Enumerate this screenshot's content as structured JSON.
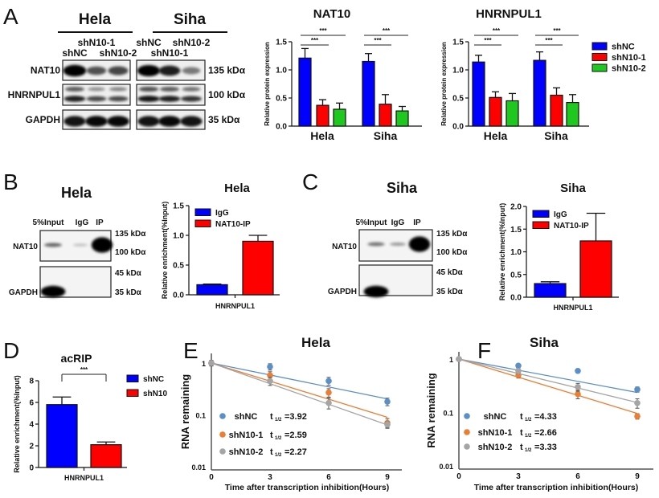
{
  "panel_letters": [
    "A",
    "B",
    "C",
    "D",
    "E",
    "F"
  ],
  "panel_a_blot": {
    "groups": [
      "Hela",
      "Siha"
    ],
    "lanes": [
      "shNC",
      "shN10-1",
      "shN10-2"
    ],
    "rows": [
      {
        "label": "NAT10",
        "marker": "135 kDα",
        "bands": {
          "Hela": [
            [
              1.0,
              0.55,
              0.6
            ]
          ],
          "Siha": [
            [
              0.95,
              0.8,
              0.35
            ]
          ]
        }
      },
      {
        "label": "HNRNPUL1",
        "marker": "100 kDα",
        "bands": {
          "Hela": [
            [
              0.5,
              0.25,
              0.3
            ],
            [
              0.8,
              0.6,
              0.6
            ]
          ],
          "Siha": [
            [
              0.55,
              0.5,
              0.4
            ],
            [
              0.85,
              0.8,
              0.7
            ]
          ]
        }
      },
      {
        "label": "GAPDH",
        "marker": "35 kDα",
        "bands": {
          "Hela": [
            [
              0.85,
              0.9,
              0.9
            ]
          ],
          "Siha": [
            [
              0.85,
              0.9,
              0.85
            ]
          ]
        }
      }
    ]
  },
  "panel_b_blot": {
    "title": "Hela",
    "lanes": [
      "5%Input",
      "IgG",
      "IP"
    ],
    "rows": [
      {
        "label": "NAT10",
        "markers": [
          "135 kDα",
          "100 kDα"
        ],
        "bands": [
          0.45,
          0.03,
          1.0
        ]
      },
      {
        "label": "GAPDH",
        "markers": [
          "45 kDα",
          "35 kDα"
        ],
        "bands": [
          1.0,
          0,
          0
        ]
      }
    ]
  },
  "panel_c_blot": {
    "title": "Siha",
    "lanes": [
      "5%Input",
      "IgG",
      "IP"
    ],
    "rows": [
      {
        "label": "NAT10",
        "markers": [
          "135 kDα",
          "100 kDα"
        ],
        "bands": [
          0.4,
          0.22,
          1.0
        ]
      },
      {
        "label": "GAPDH",
        "markers": [
          "45 kDα",
          "35 kDα"
        ],
        "bands": [
          1.0,
          0,
          0
        ]
      }
    ]
  },
  "chart_data": [
    {
      "type": "bar",
      "title": "NAT10",
      "ylabel": "Relative protein expression",
      "xlabel": "",
      "ylim": [
        0,
        1.5
      ],
      "yticks": [
        0,
        0.5,
        1.0,
        1.5
      ],
      "ytick_labels": [
        "0.0",
        "0.5",
        "1.0",
        "1.5"
      ],
      "categories": [
        "Hela",
        "Siha"
      ],
      "series": [
        {
          "name": "shNC",
          "color": "#0000ff",
          "values": [
            1.21,
            1.15
          ],
          "errors": [
            0.17,
            0.14
          ]
        },
        {
          "name": "shN10-1",
          "color": "#ff0000",
          "values": [
            0.37,
            0.39
          ],
          "errors": [
            0.1,
            0.17
          ]
        },
        {
          "name": "shN10-2",
          "color": "#1ec81e",
          "values": [
            0.3,
            0.27
          ],
          "errors": [
            0.11,
            0.08
          ]
        }
      ],
      "significance": [
        {
          "category": 0,
          "pair": [
            0,
            1
          ],
          "label": "***"
        },
        {
          "category": 0,
          "pair": [
            0,
            2
          ],
          "label": "***"
        },
        {
          "category": 1,
          "pair": [
            0,
            1
          ],
          "label": "***"
        },
        {
          "category": 1,
          "pair": [
            0,
            2
          ],
          "label": "***"
        }
      ]
    },
    {
      "type": "bar",
      "title": "HNRNPUL1",
      "ylabel": "Relative protein expression",
      "xlabel": "",
      "ylim": [
        0,
        1.5
      ],
      "yticks": [
        0,
        0.5,
        1.0,
        1.5
      ],
      "ytick_labels": [
        "0.0",
        "0.5",
        "1.0",
        "1.5"
      ],
      "categories": [
        "Hela",
        "Siha"
      ],
      "legend": "right",
      "series": [
        {
          "name": "shNC",
          "color": "#0000ff",
          "values": [
            1.14,
            1.17
          ],
          "errors": [
            0.12,
            0.15
          ]
        },
        {
          "name": "shN10-1",
          "color": "#ff0000",
          "values": [
            0.51,
            0.55
          ],
          "errors": [
            0.1,
            0.13
          ]
        },
        {
          "name": "shN10-2",
          "color": "#1ec81e",
          "values": [
            0.45,
            0.42
          ],
          "errors": [
            0.13,
            0.14
          ]
        }
      ],
      "significance": [
        {
          "category": 0,
          "pair": [
            0,
            1
          ],
          "label": "***"
        },
        {
          "category": 0,
          "pair": [
            0,
            2
          ],
          "label": "***"
        },
        {
          "category": 1,
          "pair": [
            0,
            1
          ],
          "label": "***"
        },
        {
          "category": 1,
          "pair": [
            0,
            2
          ],
          "label": "***"
        }
      ]
    },
    {
      "type": "bar",
      "title": "Hela",
      "ylabel": "Relative enrichment(%Input)",
      "xlabel": "",
      "ylim": [
        0,
        1.5
      ],
      "yticks": [
        0,
        0.5,
        1.0,
        1.5
      ],
      "ytick_labels": [
        "0.0",
        "0.5",
        "1.0",
        "1.5"
      ],
      "categories": [
        "HNRNPUL1"
      ],
      "legend": "top-left",
      "series": [
        {
          "name": "IgG",
          "color": "#0000ff",
          "values": [
            0.17
          ],
          "errors": [
            0.01
          ]
        },
        {
          "name": "NAT10-IP",
          "color": "#ff0000",
          "values": [
            0.9
          ],
          "errors": [
            0.1
          ]
        }
      ],
      "significance": []
    },
    {
      "type": "bar",
      "title": "Siha",
      "ylabel": "Relative enrichment(%Input)",
      "xlabel": "",
      "ylim": [
        0,
        2.0
      ],
      "yticks": [
        0,
        0.5,
        1.0,
        1.5,
        2.0
      ],
      "ytick_labels": [
        "0.0",
        "0.5",
        "1.0",
        "1.5",
        "2.0"
      ],
      "categories": [
        "HNRNPUL1"
      ],
      "legend": "top-left",
      "series": [
        {
          "name": "IgG",
          "color": "#0000ff",
          "values": [
            0.3
          ],
          "errors": [
            0.04
          ]
        },
        {
          "name": "NAT10-IP",
          "color": "#ff0000",
          "values": [
            1.24
          ],
          "errors": [
            0.61
          ]
        }
      ],
      "significance": []
    },
    {
      "type": "bar",
      "title": "acRIP",
      "ylabel": "Relative enrichment(%Input)",
      "xlabel": "",
      "ylim": [
        0,
        8
      ],
      "yticks": [
        0,
        2,
        4,
        6,
        8
      ],
      "ytick_labels": [
        "0",
        "2",
        "4",
        "6",
        "8"
      ],
      "categories": [
        "HNRNPUL1"
      ],
      "legend": "right",
      "series": [
        {
          "name": "shNC",
          "color": "#0000ff",
          "values": [
            5.8
          ],
          "errors": [
            0.7
          ]
        },
        {
          "name": "shN10",
          "color": "#ff0000",
          "values": [
            2.1
          ],
          "errors": [
            0.25
          ]
        }
      ],
      "significance": [
        {
          "category": 0,
          "pair": [
            0,
            1
          ],
          "label": "***"
        }
      ]
    },
    {
      "type": "line",
      "title": "Hela",
      "ylabel": "RNA  remaining",
      "xlabel": "Time after transcription inhibition(Hours)",
      "yscale": "log",
      "ylim": [
        0.01,
        1
      ],
      "yticks": [
        1,
        0.1,
        0.01
      ],
      "ytick_labels": [
        "1",
        "0.1",
        "0.01"
      ],
      "xlim": [
        0,
        9
      ],
      "xticks": [
        0,
        3,
        6,
        9
      ],
      "xtick_labels": [
        "0",
        "3",
        "6",
        "9"
      ],
      "legend": "bottom-left",
      "half_life_symbol": "t",
      "half_life_sub": "1/2",
      "series": [
        {
          "name": "shNC",
          "color": "#5b8fc9",
          "half_life": 3.92,
          "half_life_label": "=3.92",
          "x": [
            0,
            3,
            6,
            9
          ],
          "y": [
            1,
            0.85,
            0.45,
            0.18
          ],
          "errors": [
            0.12,
            0.12,
            0.08,
            0.03
          ]
        },
        {
          "name": "shN10-1",
          "color": "#ed7d31",
          "half_life": 2.59,
          "half_life_label": "=2.59",
          "x": [
            0,
            3,
            6,
            9
          ],
          "y": [
            1,
            0.58,
            0.27,
            0.07
          ],
          "errors": [
            0.12,
            0.1,
            0.05,
            0.015
          ]
        },
        {
          "name": "shN10-2",
          "color": "#a5a5a5",
          "half_life": 2.27,
          "half_life_label": "=2.27",
          "x": [
            0,
            3,
            6,
            9
          ],
          "y": [
            1,
            0.45,
            0.17,
            0.065
          ],
          "errors": [
            0.12,
            0.08,
            0.04,
            0.008
          ]
        }
      ]
    },
    {
      "type": "line",
      "title": "Siha",
      "ylabel": "RNA  remaining",
      "xlabel": "Time after transcription inhibition(Hours)",
      "yscale": "log",
      "ylim": [
        0.01,
        1
      ],
      "yticks": [
        1,
        0.1,
        0.01
      ],
      "ytick_labels": [
        "1",
        "0.1",
        "0.01"
      ],
      "xlim": [
        0,
        9
      ],
      "xticks": [
        0,
        3,
        6,
        9
      ],
      "xtick_labels": [
        "0",
        "3",
        "6",
        "9"
      ],
      "legend": "bottom-left",
      "half_life_symbol": "t",
      "half_life_sub": "1/2",
      "series": [
        {
          "name": "shNC",
          "color": "#5b8fc9",
          "half_life": 4.33,
          "half_life_label": "=4.33",
          "x": [
            0,
            3,
            6,
            9
          ],
          "y": [
            1,
            0.75,
            0.6,
            0.27
          ],
          "errors": [
            0.03,
            0.05,
            0.04,
            0.03
          ]
        },
        {
          "name": "shN10-1",
          "color": "#ed7d31",
          "half_life": 2.66,
          "half_life_label": "=2.66",
          "x": [
            0,
            3,
            6,
            9
          ],
          "y": [
            1,
            0.5,
            0.22,
            0.085
          ],
          "errors": [
            0.03,
            0.06,
            0.04,
            0.01
          ]
        },
        {
          "name": "shN10-2",
          "color": "#a5a5a5",
          "half_life": 3.33,
          "half_life_label": "=3.33",
          "x": [
            0,
            3,
            6,
            9
          ],
          "y": [
            1,
            0.6,
            0.3,
            0.15
          ],
          "errors": [
            0.03,
            0.06,
            0.05,
            0.03
          ]
        }
      ]
    }
  ]
}
